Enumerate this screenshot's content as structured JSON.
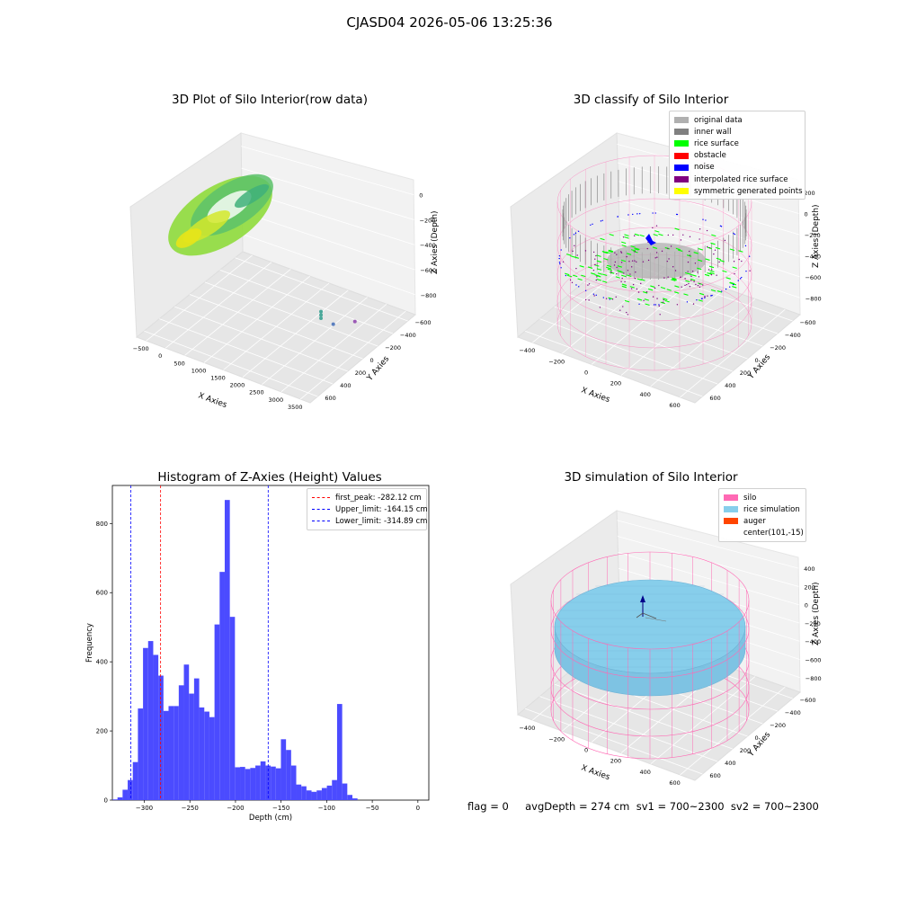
{
  "suptitle": "CJASD04 2026-05-06 13:25:36",
  "footer": "flag = 0     avgDepth = 274 cm  sv1 = 700~2300  sv2 = 700~2300",
  "colors": {
    "original": "#b0b0b0",
    "inner_wall": "#808080",
    "rice_surface": "#00ff00",
    "obstacle": "#ff0000",
    "noise": "#0000ff",
    "interp": "#800080",
    "sym": "#ffff00",
    "silo": "#ff69b4",
    "rice_sim": "#87ceeb",
    "auger": "#ff4500",
    "hist": "#4b4bff"
  },
  "chart_data": [
    {
      "type": "scatter3d",
      "title": "3D Plot of Silo Interior(row data)",
      "xlabel": "X Axies",
      "ylabel": "Y Axies",
      "zlabel": "Z Axies (Depth)",
      "xticks": [
        "−500",
        "0",
        "500",
        "1000",
        "1500",
        "2000",
        "2500",
        "3000",
        "3500"
      ],
      "yticks": [
        "−600",
        "−400",
        "−200",
        "0",
        "200",
        "400",
        "600"
      ],
      "zticks": [
        "0",
        "−200",
        "−400",
        "−600",
        "−800"
      ],
      "outliers": [
        {
          "x": 3000,
          "y": 560,
          "z": -900
        },
        {
          "x": 2700,
          "y": 250,
          "z": -780
        },
        {
          "x": 2500,
          "y": 100,
          "z": -600
        },
        {
          "x": 2500,
          "y": 100,
          "z": -630
        },
        {
          "x": 2500,
          "y": 100,
          "z": -660
        }
      ]
    },
    {
      "type": "scatter3d",
      "title": "3D classify of Silo Interior",
      "xlabel": "X Axies",
      "ylabel": "Y Axies",
      "zlabel": "Z Axies (Depth)",
      "xticks": [
        "−400",
        "−200",
        "0",
        "200",
        "400",
        "600"
      ],
      "yticks": [
        "−600",
        "−400",
        "−200",
        "0",
        "200",
        "400",
        "600"
      ],
      "zticks": [
        "200",
        "0",
        "−200",
        "−400",
        "−600",
        "−800"
      ],
      "legend": [
        "original data",
        "inner wall",
        "rice surface",
        "obstacle",
        "noise",
        "interpolated rice surface",
        "symmetric generated points"
      ]
    },
    {
      "type": "bar",
      "title": "Histogram of Z-Axies (Height) Values",
      "xlabel": "Depth (cm)",
      "ylabel": "Frequency",
      "xlim": [
        -335,
        12
      ],
      "ylim": [
        0,
        910
      ],
      "xticks": [
        -300,
        -250,
        -200,
        -150,
        -100,
        -50,
        0
      ],
      "yticks": [
        0,
        200,
        400,
        600,
        800
      ],
      "bin_start": -335,
      "bin_width": 5.6,
      "values": [
        2,
        8,
        30,
        58,
        110,
        265,
        440,
        460,
        420,
        360,
        258,
        272,
        272,
        332,
        392,
        308,
        352,
        268,
        256,
        240,
        508,
        660,
        868,
        530,
        95,
        96,
        90,
        93,
        100,
        112,
        100,
        97,
        92,
        176,
        145,
        100,
        45,
        40,
        28,
        24,
        28,
        35,
        42,
        58,
        278,
        48,
        15,
        5
      ],
      "vlines": [
        {
          "label": "first_peak: -282.12 cm",
          "value": -282.12,
          "color": "#ff0000"
        },
        {
          "label": "Upper_limit: -164.15 cm",
          "value": -164.15,
          "color": "#0000ff"
        },
        {
          "label": "Lower_limit: -314.89 cm",
          "value": -314.89,
          "color": "#0000ff"
        }
      ]
    },
    {
      "type": "surface3d",
      "title": "3D simulation of Silo Interior",
      "xlabel": "X Axies",
      "ylabel": "Y Axies",
      "zlabel": "Z Axies (Depth)",
      "xticks": [
        "−400",
        "−200",
        "0",
        "200",
        "400",
        "600"
      ],
      "yticks": [
        "−600",
        "−400",
        "−200",
        "0",
        "200",
        "400",
        "600"
      ],
      "zticks": [
        "400",
        "200",
        "0",
        "−200",
        "−400",
        "−600",
        "−800"
      ],
      "legend": [
        "silo",
        "rice simulation",
        "auger",
        "center(101,-15)"
      ]
    }
  ]
}
